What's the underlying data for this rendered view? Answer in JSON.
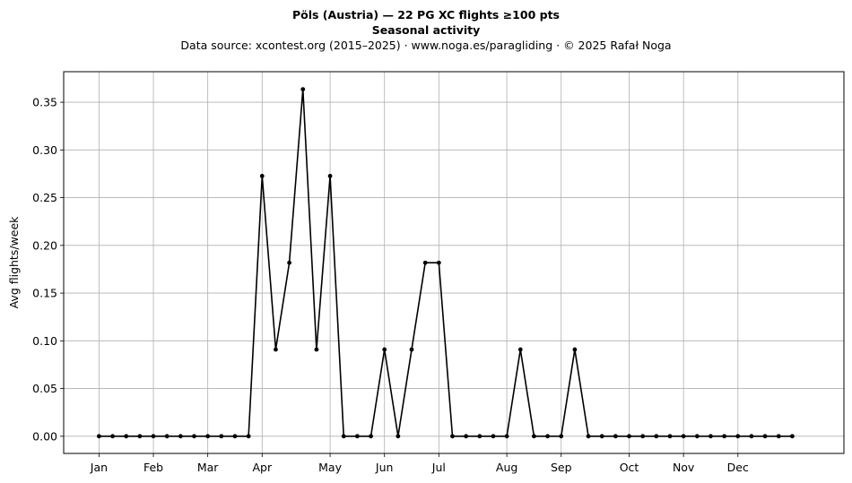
{
  "chart_data": {
    "type": "line",
    "title": "Pöls (Austria)  —  22 PG XC flights ≥100 pts",
    "subtitle": "Seasonal activity",
    "source": "Data source: xcontest.org (2015–2025)  ·  www.noga.es/paragliding  ·  © 2025 Rafał Noga",
    "xlabel": "",
    "ylabel": "Avg flights/week",
    "ylim": [
      -0.018,
      0.382
    ],
    "xlim": [
      -2.6,
      54.8
    ],
    "grid": true,
    "yticks": [
      0.0,
      0.05,
      0.1,
      0.15,
      0.2,
      0.25,
      0.3,
      0.35
    ],
    "ytick_labels": [
      "0.00",
      "0.05",
      "0.10",
      "0.15",
      "0.20",
      "0.25",
      "0.30",
      "0.35"
    ],
    "xticks": [
      0,
      4,
      8,
      12,
      17,
      21,
      25,
      30,
      34,
      39,
      43,
      47
    ],
    "xtick_labels": [
      "Jan",
      "Feb",
      "Mar",
      "Apr",
      "May",
      "Jun",
      "Jul",
      "Aug",
      "Sep",
      "Oct",
      "Nov",
      "Dec"
    ],
    "x": [
      0,
      1,
      2,
      3,
      4,
      5,
      6,
      7,
      8,
      9,
      10,
      11,
      12,
      13,
      14,
      15,
      16,
      17,
      18,
      19,
      20,
      21,
      22,
      23,
      24,
      25,
      26,
      27,
      28,
      29,
      30,
      31,
      32,
      33,
      34,
      35,
      36,
      37,
      38,
      39,
      40,
      41,
      42,
      43,
      44,
      45,
      46,
      47,
      48,
      49,
      50,
      51
    ],
    "series": [
      {
        "color": "#000000",
        "values": [
          0,
          0,
          0,
          0,
          0,
          0,
          0,
          0,
          0,
          0,
          0,
          0,
          0.2727,
          0.0909,
          0.1818,
          0.3636,
          0.0909,
          0.2727,
          0,
          0,
          0,
          0.0909,
          0,
          0.0909,
          0.1818,
          0.1818,
          0,
          0,
          0,
          0,
          0,
          0.0909,
          0,
          0,
          0,
          0.0909,
          0,
          0,
          0,
          0,
          0,
          0,
          0,
          0,
          0,
          0,
          0,
          0,
          0,
          0,
          0,
          0
        ]
      }
    ]
  }
}
